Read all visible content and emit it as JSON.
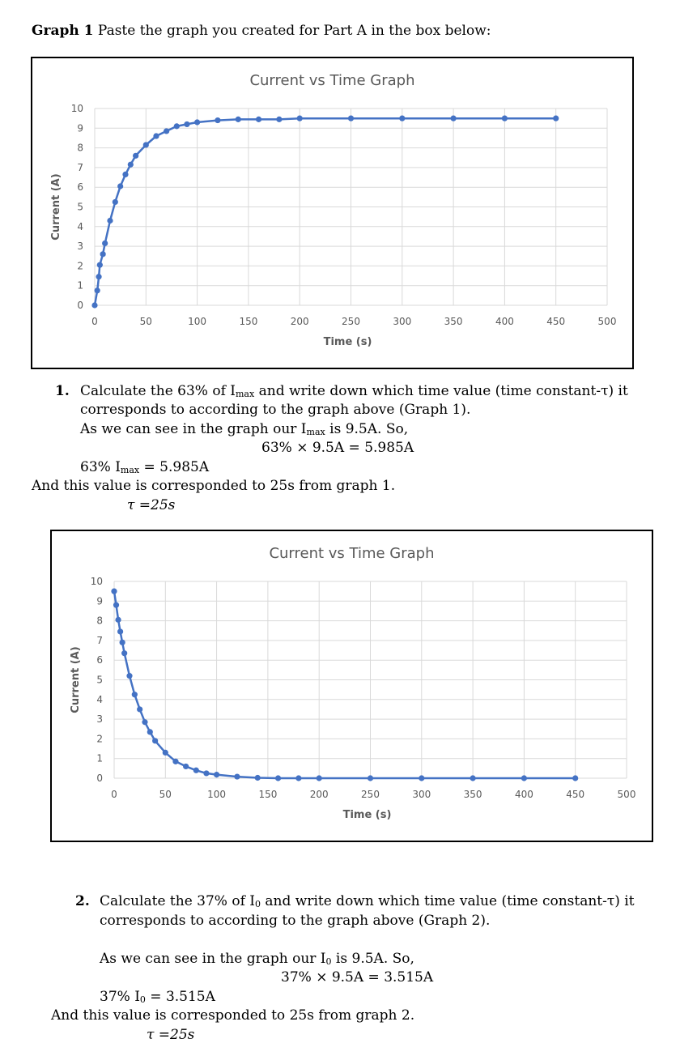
{
  "heading": {
    "bold": "Graph 1",
    "rest": " Paste the graph you created for Part A in the box below:"
  },
  "chart_data": [
    {
      "type": "line",
      "title": "Current vs Time Graph",
      "xlabel": "Time (s)",
      "ylabel": "Current  (A)",
      "xlim": [
        0,
        500
      ],
      "ylim": [
        0,
        10
      ],
      "xticks": [
        "0",
        "50",
        "100",
        "150",
        "200",
        "250",
        "300",
        "350",
        "400",
        "450",
        "500"
      ],
      "yticks": [
        "0",
        "1",
        "2",
        "3",
        "4",
        "5",
        "6",
        "7",
        "8",
        "9",
        "10"
      ],
      "grid": true,
      "x": [
        0,
        2.5,
        4,
        5,
        8,
        10,
        15,
        20,
        25,
        30,
        35,
        40,
        50,
        60,
        70,
        80,
        90,
        100,
        120,
        140,
        160,
        180,
        200,
        250,
        300,
        350,
        400,
        450
      ],
      "y": [
        0.0,
        0.75,
        1.45,
        2.05,
        2.6,
        3.15,
        4.3,
        5.25,
        6.05,
        6.65,
        7.15,
        7.6,
        8.15,
        8.6,
        8.85,
        9.1,
        9.2,
        9.3,
        9.4,
        9.45,
        9.45,
        9.45,
        9.5,
        9.5,
        9.5,
        9.5,
        9.5,
        9.5
      ],
      "color": "#4472C4"
    },
    {
      "type": "line",
      "title": "Current vs Time Graph",
      "xlabel": "Time (s)",
      "ylabel": "Current  (A)",
      "xlim": [
        0,
        500
      ],
      "ylim": [
        0,
        10
      ],
      "xticks": [
        "0",
        "50",
        "100",
        "150",
        "200",
        "250",
        "300",
        "350",
        "400",
        "450",
        "500"
      ],
      "yticks": [
        "0",
        "1",
        "2",
        "3",
        "4",
        "5",
        "6",
        "7",
        "8",
        "9",
        "10"
      ],
      "grid": true,
      "x": [
        0,
        2,
        4,
        6,
        8,
        10,
        15,
        20,
        25,
        30,
        35,
        40,
        50,
        60,
        70,
        80,
        90,
        100,
        120,
        140,
        160,
        180,
        200,
        250,
        300,
        350,
        400,
        450
      ],
      "y": [
        9.5,
        8.8,
        8.05,
        7.45,
        6.9,
        6.35,
        5.2,
        4.25,
        3.5,
        2.85,
        2.35,
        1.9,
        1.3,
        0.85,
        0.6,
        0.4,
        0.25,
        0.18,
        0.08,
        0.02,
        0.0,
        0.0,
        0.0,
        0.0,
        0.0,
        0.0,
        0.0,
        0.0
      ],
      "color": "#4472C4"
    }
  ],
  "q1": {
    "number": "1.",
    "line1": "Calculate the 63% of I",
    "line1_sub": "max",
    "line1_rest": " and write down which time value (time constant-τ) it",
    "line2": "corresponds to according to the graph above (Graph 1).",
    "line3a": "As we can see in the graph our I",
    "line3_sub": "max",
    "line3b": " is 9.5A. So,",
    "equation": "63% × 9.5A = 5.985A",
    "result_a": "63% I",
    "result_sub": "max",
    "result_b": " = 5.985A",
    "conclusion": "And this value is corresponded to 25s from graph 1.",
    "tau": "τ =25s"
  },
  "q2": {
    "number": "2.",
    "line1": "Calculate the 37% of I",
    "line1_sub": "0",
    "line1_rest": " and write down which time value (time constant-τ) it",
    "line2": "corresponds to according to the graph above (Graph 2).",
    "line3a": "As we can see in the graph our I",
    "line3_sub": "0",
    "line3b": " is 9.5A. So,",
    "equation": "37% × 9.5A = 3.515A",
    "result_a": "37% I",
    "result_sub": "0",
    "result_b": " = 3.515A",
    "conclusion": "And this value is corresponded to 25s from graph 2.",
    "tau": "τ =25s"
  }
}
